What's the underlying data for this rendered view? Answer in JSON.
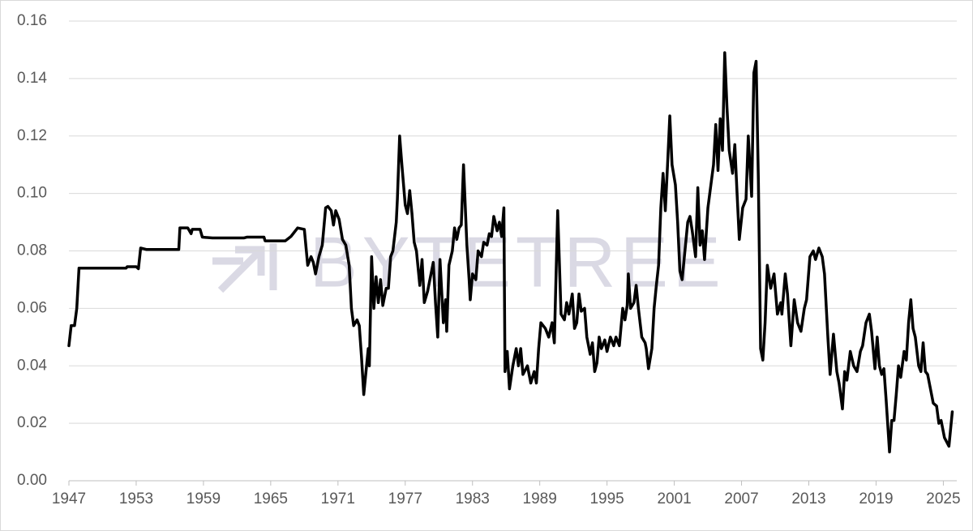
{
  "chart_data": {
    "type": "line",
    "watermark": "BYTETREE",
    "xlim": [
      1947,
      2026.2
    ],
    "xticks": [
      1947,
      1953,
      1959,
      1965,
      1971,
      1977,
      1983,
      1989,
      1995,
      2001,
      2007,
      2013,
      2019,
      2025
    ],
    "ylim": [
      0,
      0.16
    ],
    "yticks": [
      {
        "value": 0,
        "label": "0.00"
      },
      {
        "value": 0.02,
        "label": "0.02"
      },
      {
        "value": 0.04,
        "label": "0.04"
      },
      {
        "value": 0.06,
        "label": "0.06"
      },
      {
        "value": 0.08,
        "label": "0.08"
      },
      {
        "value": 0.1,
        "label": "0.10"
      },
      {
        "value": 0.12,
        "label": "0.12"
      },
      {
        "value": 0.14,
        "label": "0.14"
      },
      {
        "value": 0.16,
        "label": "0.16"
      }
    ],
    "grid": true,
    "x": [
      1947.0,
      1947.2,
      1947.5,
      1947.7,
      1947.9,
      1952.1,
      1952.2,
      1953.0,
      1953.2,
      1953.4,
      1953.9,
      1956.8,
      1956.9,
      1957.6,
      1957.9,
      1958.0,
      1958.7,
      1958.9,
      1959.8,
      1962.6,
      1962.9,
      1964.4,
      1964.5,
      1965.8,
      1966.3,
      1966.8,
      1967.0,
      1967.4,
      1968.0,
      1968.3,
      1968.6,
      1968.8,
      1969.0,
      1969.3,
      1969.6,
      1969.9,
      1970.1,
      1970.4,
      1970.6,
      1970.8,
      1971.1,
      1971.4,
      1971.7,
      1972.0,
      1972.2,
      1972.4,
      1972.7,
      1972.9,
      1973.1,
      1973.3,
      1973.6,
      1973.7,
      1973.8,
      1974.0,
      1974.2,
      1974.4,
      1974.6,
      1974.8,
      1975.0,
      1975.3,
      1975.5,
      1975.7,
      1975.9,
      1976.2,
      1976.3,
      1976.5,
      1976.7,
      1977.0,
      1977.2,
      1977.4,
      1977.6,
      1977.8,
      1978.0,
      1978.3,
      1978.5,
      1978.7,
      1979.0,
      1979.3,
      1979.5,
      1979.7,
      1979.9,
      1980.1,
      1980.4,
      1980.6,
      1980.7,
      1980.9,
      1981.2,
      1981.4,
      1981.6,
      1981.8,
      1982.0,
      1982.2,
      1982.5,
      1982.7,
      1982.8,
      1983.0,
      1983.3,
      1983.5,
      1983.8,
      1984.0,
      1984.3,
      1984.5,
      1984.7,
      1984.9,
      1985.2,
      1985.4,
      1985.6,
      1985.8,
      1985.9,
      1986.1,
      1986.3,
      1986.6,
      1986.9,
      1987.1,
      1987.3,
      1987.5,
      1987.9,
      1988.2,
      1988.5,
      1988.7,
      1988.9,
      1989.1,
      1989.5,
      1989.8,
      1990.1,
      1990.3,
      1990.6,
      1990.9,
      1991.2,
      1991.4,
      1991.6,
      1991.9,
      1992.1,
      1992.3,
      1992.5,
      1992.7,
      1993.0,
      1993.2,
      1993.5,
      1993.7,
      1993.9,
      1994.1,
      1994.3,
      1994.5,
      1994.8,
      1995.0,
      1995.3,
      1995.6,
      1995.8,
      1996.1,
      1996.4,
      1996.6,
      1996.8,
      1996.9,
      1997.1,
      1997.4,
      1997.6,
      1997.8,
      1998.1,
      1998.4,
      1998.5,
      1998.7,
      1999.0,
      1999.2,
      1999.4,
      1999.6,
      1999.8,
      2000.0,
      2000.2,
      2000.4,
      2000.6,
      2000.8,
      2001.1,
      2001.3,
      2001.5,
      2001.7,
      2002.0,
      2002.2,
      2002.4,
      2002.6,
      2002.9,
      2003.1,
      2003.3,
      2003.5,
      2003.7,
      2004.0,
      2004.2,
      2004.5,
      2004.7,
      2004.9,
      2005.1,
      2005.3,
      2005.5,
      2005.7,
      2005.9,
      2006.2,
      2006.4,
      2006.6,
      2006.8,
      2007.1,
      2007.4,
      2007.6,
      2007.9,
      2008.1,
      2008.3,
      2008.5,
      2008.7,
      2008.9,
      2009.1,
      2009.3,
      2009.6,
      2009.9,
      2010.2,
      2010.5,
      2010.6,
      2010.9,
      2011.1,
      2011.4,
      2011.7,
      2012.0,
      2012.3,
      2012.6,
      2012.8,
      2013.1,
      2013.4,
      2013.6,
      2013.9,
      2014.2,
      2014.4,
      2014.7,
      2014.9,
      2015.2,
      2015.5,
      2015.7,
      2016.0,
      2016.2,
      2016.4,
      2016.7,
      2017.0,
      2017.3,
      2017.6,
      2017.8,
      2018.1,
      2018.4,
      2018.6,
      2018.9,
      2019.1,
      2019.3,
      2019.5,
      2019.7,
      2019.9,
      2020.2,
      2020.4,
      2020.6,
      2020.8,
      2021.0,
      2021.2,
      2021.5,
      2021.7,
      2021.9,
      2022.1,
      2022.3,
      2022.5,
      2022.8,
      2023.0,
      2023.2,
      2023.4,
      2023.6,
      2023.8,
      2024.1,
      2024.4,
      2024.6,
      2024.8,
      2025.1,
      2025.5,
      2025.8
    ],
    "series": [
      {
        "color": "#000000",
        "values": [
          0.047,
          0.054,
          0.054,
          0.06,
          0.074,
          0.074,
          0.0745,
          0.0745,
          0.0738,
          0.081,
          0.0805,
          0.0805,
          0.088,
          0.088,
          0.086,
          0.0875,
          0.0875,
          0.0848,
          0.0845,
          0.0845,
          0.0848,
          0.0848,
          0.0835,
          0.0835,
          0.0835,
          0.085,
          0.086,
          0.088,
          0.0875,
          0.075,
          0.078,
          0.076,
          0.072,
          0.078,
          0.082,
          0.095,
          0.0955,
          0.094,
          0.089,
          0.094,
          0.091,
          0.084,
          0.082,
          0.075,
          0.06,
          0.054,
          0.056,
          0.054,
          0.043,
          0.03,
          0.042,
          0.046,
          0.04,
          0.078,
          0.06,
          0.071,
          0.062,
          0.07,
          0.061,
          0.067,
          0.067,
          0.078,
          0.08,
          0.09,
          0.098,
          0.12,
          0.11,
          0.096,
          0.093,
          0.101,
          0.093,
          0.083,
          0.08,
          0.068,
          0.077,
          0.062,
          0.066,
          0.072,
          0.076,
          0.062,
          0.05,
          0.077,
          0.055,
          0.063,
          0.052,
          0.075,
          0.08,
          0.088,
          0.084,
          0.088,
          0.089,
          0.11,
          0.082,
          0.07,
          0.063,
          0.072,
          0.07,
          0.08,
          0.078,
          0.083,
          0.082,
          0.086,
          0.085,
          0.092,
          0.087,
          0.09,
          0.085,
          0.095,
          0.038,
          0.045,
          0.032,
          0.04,
          0.046,
          0.04,
          0.046,
          0.037,
          0.04,
          0.034,
          0.038,
          0.034,
          0.046,
          0.055,
          0.053,
          0.05,
          0.055,
          0.048,
          0.094,
          0.058,
          0.056,
          0.062,
          0.058,
          0.065,
          0.053,
          0.055,
          0.065,
          0.059,
          0.06,
          0.05,
          0.044,
          0.048,
          0.038,
          0.041,
          0.05,
          0.046,
          0.049,
          0.045,
          0.05,
          0.047,
          0.05,
          0.047,
          0.06,
          0.056,
          0.061,
          0.072,
          0.06,
          0.062,
          0.068,
          0.06,
          0.05,
          0.048,
          0.046,
          0.039,
          0.046,
          0.06,
          0.068,
          0.075,
          0.095,
          0.107,
          0.094,
          0.11,
          0.127,
          0.11,
          0.103,
          0.09,
          0.073,
          0.07,
          0.082,
          0.09,
          0.092,
          0.087,
          0.078,
          0.102,
          0.082,
          0.087,
          0.077,
          0.095,
          0.101,
          0.11,
          0.124,
          0.108,
          0.126,
          0.115,
          0.149,
          0.13,
          0.115,
          0.107,
          0.117,
          0.1,
          0.084,
          0.095,
          0.098,
          0.12,
          0.099,
          0.142,
          0.146,
          0.105,
          0.046,
          0.042,
          0.055,
          0.075,
          0.067,
          0.072,
          0.058,
          0.062,
          0.058,
          0.072,
          0.065,
          0.047,
          0.063,
          0.055,
          0.052,
          0.06,
          0.063,
          0.078,
          0.08,
          0.077,
          0.081,
          0.078,
          0.072,
          0.05,
          0.037,
          0.051,
          0.038,
          0.034,
          0.025,
          0.038,
          0.035,
          0.045,
          0.04,
          0.038,
          0.045,
          0.047,
          0.055,
          0.058,
          0.052,
          0.039,
          0.05,
          0.04,
          0.037,
          0.039,
          0.028,
          0.01,
          0.021,
          0.021,
          0.03,
          0.04,
          0.036,
          0.045,
          0.042,
          0.055,
          0.063,
          0.053,
          0.05,
          0.04,
          0.038,
          0.048,
          0.038,
          0.037,
          0.033,
          0.027,
          0.026,
          0.02,
          0.021,
          0.015,
          0.012,
          0.024
        ]
      }
    ]
  }
}
